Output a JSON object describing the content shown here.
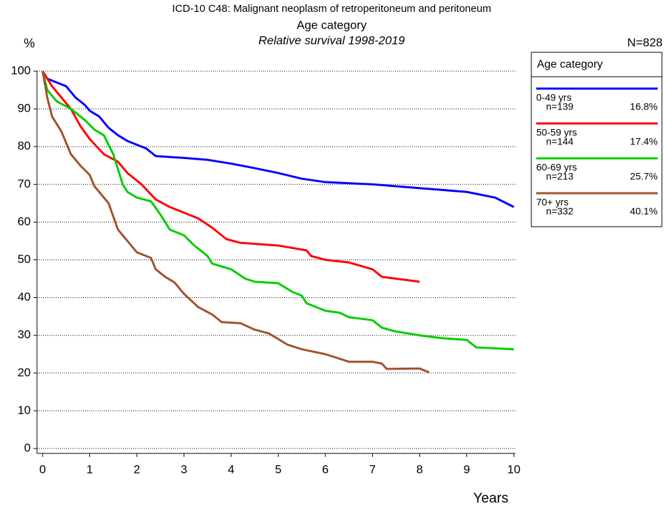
{
  "chart_data": {
    "type": "line",
    "title": "ICD-10 C48: Malignant neoplasm of retroperitoneum and peritoneum",
    "subtitle": "Age category",
    "caption": "Relative survival 1998-2019",
    "y_label": "%",
    "total_label": "N=828",
    "x_label": "Years",
    "legend_title": "Age category",
    "xlim": [
      0,
      10
    ],
    "xticks": [
      0,
      1,
      2,
      3,
      4,
      5,
      6,
      7,
      8,
      9,
      10
    ],
    "ylim": [
      0,
      100
    ],
    "yticks": [
      0,
      10,
      20,
      30,
      40,
      50,
      60,
      70,
      80,
      90,
      100
    ],
    "grid": true,
    "series": [
      {
        "name": "0-49 yrs",
        "color": "#0000ff",
        "n_label": "n=139",
        "share_label": "16.8%",
        "x": [
          0,
          0.1,
          0.3,
          0.5,
          0.7,
          0.9,
          1,
          1.2,
          1.4,
          1.6,
          1.8,
          2,
          2.2,
          2.4,
          3,
          3.5,
          4,
          4.5,
          5,
          5.5,
          6,
          7,
          8,
          9,
          9.6,
          10
        ],
        "values": [
          100,
          98,
          97,
          96,
          93,
          91,
          89.5,
          88,
          85,
          83,
          81.5,
          80.5,
          79.5,
          77.5,
          77,
          76.5,
          75.5,
          74.3,
          73,
          71.5,
          70.6,
          70,
          69,
          68,
          66.5,
          64
        ]
      },
      {
        "name": "50-59 yrs",
        "color": "#ff0000",
        "n_label": "n=144",
        "share_label": "17.4%",
        "x": [
          0,
          0.2,
          0.4,
          0.6,
          0.8,
          1,
          1.3,
          1.6,
          1.8,
          2.1,
          2.4,
          2.7,
          3,
          3.3,
          3.6,
          3.9,
          4.2,
          5,
          5.6,
          5.7,
          6,
          6.5,
          7,
          7.2,
          8
        ],
        "values": [
          100,
          96,
          93,
          90,
          85.5,
          82,
          78,
          76,
          73,
          70,
          66,
          64,
          62.5,
          61,
          58.5,
          55.5,
          54.5,
          53.8,
          52.5,
          51,
          50,
          49.3,
          47.5,
          45.5,
          44.2
        ]
      },
      {
        "name": "60-69 yrs",
        "color": "#00cc00",
        "n_label": "n=213",
        "share_label": "25.7%",
        "x": [
          0,
          0.1,
          0.3,
          0.6,
          0.9,
          1.1,
          1.3,
          1.5,
          1.7,
          1.8,
          2,
          2.3,
          2.5,
          2.7,
          3,
          3.2,
          3.5,
          3.6,
          4,
          4.3,
          4.5,
          5,
          5.3,
          5.5,
          5.6,
          6,
          6.3,
          6.5,
          7,
          7.2,
          7.5,
          8,
          8.5,
          9,
          9.2,
          10
        ],
        "values": [
          100,
          95,
          92,
          90,
          87,
          84.5,
          83,
          78,
          70,
          68,
          66.5,
          65.5,
          62,
          58,
          56.5,
          54,
          51,
          49,
          47.5,
          45,
          44.2,
          43.8,
          41.5,
          40.5,
          38.5,
          36.5,
          36,
          34.8,
          34,
          32,
          31,
          30,
          29.2,
          28.8,
          26.8,
          26.3
        ]
      },
      {
        "name": "70+ yrs",
        "color": "#a0522d",
        "n_label": "n=332",
        "share_label": "40.1%",
        "x": [
          0,
          0.1,
          0.2,
          0.4,
          0.6,
          0.8,
          1,
          1.1,
          1.4,
          1.6,
          1.8,
          2,
          2.3,
          2.4,
          2.6,
          2.8,
          3,
          3.3,
          3.6,
          3.8,
          4.2,
          4.5,
          4.8,
          5,
          5.2,
          5.5,
          6,
          6.3,
          6.5,
          7,
          7.2,
          7.3,
          8,
          8.2
        ],
        "values": [
          100,
          93,
          88,
          84,
          78,
          75,
          72.5,
          69.5,
          65,
          58,
          55,
          52,
          50.5,
          47.5,
          45.5,
          44,
          41,
          37.5,
          35.5,
          33.5,
          33.2,
          31.5,
          30.5,
          29,
          27.5,
          26.3,
          25,
          23.8,
          23,
          23,
          22.5,
          21.1,
          21.2,
          20.2
        ]
      }
    ]
  }
}
